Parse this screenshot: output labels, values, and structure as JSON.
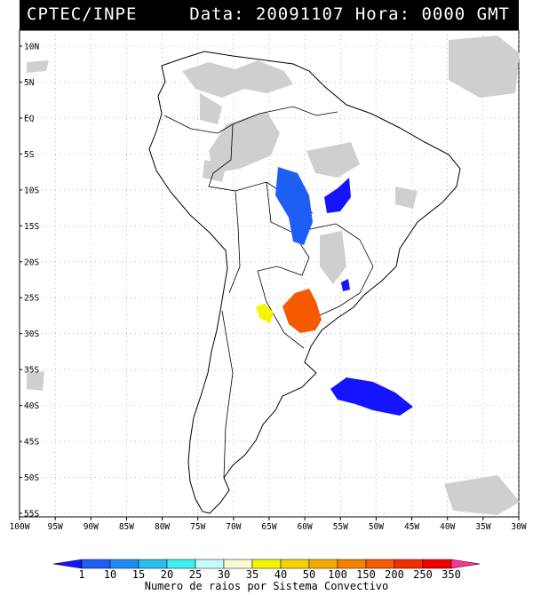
{
  "header": {
    "source": "CPTEC/INPE",
    "datetime": "Data: 20091107 Hora: 0000 GMT"
  },
  "map": {
    "lat_labels": [
      "10N",
      "5N",
      "EQ",
      "5S",
      "10S",
      "15S",
      "20S",
      "25S",
      "30S",
      "35S",
      "40S",
      "45S",
      "50S",
      "55S"
    ],
    "lon_labels": [
      "100W",
      "95W",
      "90W",
      "85W",
      "80W",
      "75W",
      "70W",
      "65W",
      "60W",
      "55W",
      "50W",
      "45W",
      "40W",
      "35W",
      "30W"
    ],
    "lat_range": [
      10,
      -55
    ],
    "lon_range": [
      -100,
      -30
    ],
    "grid": "dotted",
    "cloud_color": "#cfcfcf",
    "land_outline_color": "#000000"
  },
  "colorbar": {
    "title": "Numero de raios por Sistema Convectivo",
    "labels": [
      "1",
      "10",
      "15",
      "20",
      "25",
      "30",
      "35",
      "40",
      "50",
      "100",
      "150",
      "200",
      "250",
      "350"
    ],
    "colors": [
      "#1414ff",
      "#1e5ef5",
      "#1e8cf0",
      "#28bef0",
      "#3cf0f0",
      "#c8fafa",
      "#fafad2",
      "#f5f500",
      "#f5d200",
      "#f5aa00",
      "#f58200",
      "#f55a00",
      "#f52d00",
      "#f50000",
      "#ff3296"
    ]
  },
  "storms": [
    {
      "label": "central-brazil",
      "lightning": "10-15",
      "color": "#1e5ef5"
    },
    {
      "label": "northeast-brazil",
      "lightning": "1-10",
      "color": "#1414ff"
    },
    {
      "label": "paraguay-parana",
      "lightning": "150-200",
      "color": "#f55a00"
    },
    {
      "label": "argentina-north",
      "lightning": "35-40",
      "color": "#f5f500"
    },
    {
      "label": "south-atlantic",
      "lightning": "1-10",
      "color": "#1414ff"
    },
    {
      "label": "south-brazil-small",
      "lightning": "1-10",
      "color": "#1414ff"
    }
  ]
}
